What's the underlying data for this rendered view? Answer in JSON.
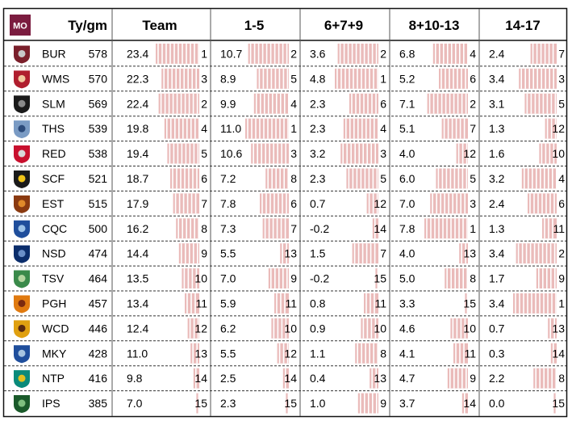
{
  "chart_data": {
    "type": "table",
    "badge": "MO",
    "columns": {
      "tygm": "Ty/gm",
      "team": "Team",
      "g1": "1-5",
      "g2": "6+7+9",
      "g3": "8+10-13",
      "g4": "14-17"
    },
    "rows": [
      {
        "code": "BUR",
        "tygm": "578",
        "team": {
          "v": "23.4",
          "r": "1"
        },
        "g1": {
          "v": "10.7",
          "r": "2"
        },
        "g2": {
          "v": "3.6",
          "r": "2"
        },
        "g3": {
          "v": "6.8",
          "r": "4"
        },
        "g4": {
          "v": "2.4",
          "r": "7"
        }
      },
      {
        "code": "WMS",
        "tygm": "570",
        "team": {
          "v": "22.3",
          "r": "3"
        },
        "g1": {
          "v": "8.9",
          "r": "5"
        },
        "g2": {
          "v": "4.8",
          "r": "1"
        },
        "g3": {
          "v": "5.2",
          "r": "6"
        },
        "g4": {
          "v": "3.4",
          "r": "3"
        }
      },
      {
        "code": "SLM",
        "tygm": "569",
        "team": {
          "v": "22.4",
          "r": "2"
        },
        "g1": {
          "v": "9.9",
          "r": "4"
        },
        "g2": {
          "v": "2.3",
          "r": "6"
        },
        "g3": {
          "v": "7.1",
          "r": "2"
        },
        "g4": {
          "v": "3.1",
          "r": "5"
        }
      },
      {
        "code": "THS",
        "tygm": "539",
        "team": {
          "v": "19.8",
          "r": "4"
        },
        "g1": {
          "v": "11.0",
          "r": "1"
        },
        "g2": {
          "v": "2.3",
          "r": "4"
        },
        "g3": {
          "v": "5.1",
          "r": "7"
        },
        "g4": {
          "v": "1.3",
          "r": "12"
        }
      },
      {
        "code": "RED",
        "tygm": "538",
        "team": {
          "v": "19.4",
          "r": "5"
        },
        "g1": {
          "v": "10.6",
          "r": "3"
        },
        "g2": {
          "v": "3.2",
          "r": "3"
        },
        "g3": {
          "v": "4.0",
          "r": "12"
        },
        "g4": {
          "v": "1.6",
          "r": "10"
        }
      },
      {
        "code": "SCF",
        "tygm": "521",
        "team": {
          "v": "18.7",
          "r": "6"
        },
        "g1": {
          "v": "7.2",
          "r": "8"
        },
        "g2": {
          "v": "2.3",
          "r": "5"
        },
        "g3": {
          "v": "6.0",
          "r": "5"
        },
        "g4": {
          "v": "3.2",
          "r": "4"
        }
      },
      {
        "code": "EST",
        "tygm": "515",
        "team": {
          "v": "17.9",
          "r": "7"
        },
        "g1": {
          "v": "7.8",
          "r": "6"
        },
        "g2": {
          "v": "0.7",
          "r": "12"
        },
        "g3": {
          "v": "7.0",
          "r": "3"
        },
        "g4": {
          "v": "2.4",
          "r": "6"
        }
      },
      {
        "code": "CQC",
        "tygm": "500",
        "team": {
          "v": "16.2",
          "r": "8"
        },
        "g1": {
          "v": "7.3",
          "r": "7"
        },
        "g2": {
          "v": "-0.2",
          "r": "14"
        },
        "g3": {
          "v": "7.8",
          "r": "1"
        },
        "g4": {
          "v": "1.3",
          "r": "11"
        }
      },
      {
        "code": "NSD",
        "tygm": "474",
        "team": {
          "v": "14.4",
          "r": "9"
        },
        "g1": {
          "v": "5.5",
          "r": "13"
        },
        "g2": {
          "v": "1.5",
          "r": "7"
        },
        "g3": {
          "v": "4.0",
          "r": "13"
        },
        "g4": {
          "v": "3.4",
          "r": "2"
        }
      },
      {
        "code": "TSV",
        "tygm": "464",
        "team": {
          "v": "13.5",
          "r": "10"
        },
        "g1": {
          "v": "7.0",
          "r": "9"
        },
        "g2": {
          "v": "-0.2",
          "r": "15"
        },
        "g3": {
          "v": "5.0",
          "r": "8"
        },
        "g4": {
          "v": "1.7",
          "r": "9"
        }
      },
      {
        "code": "PGH",
        "tygm": "457",
        "team": {
          "v": "13.4",
          "r": "11"
        },
        "g1": {
          "v": "5.9",
          "r": "11"
        },
        "g2": {
          "v": "0.8",
          "r": "11"
        },
        "g3": {
          "v": "3.3",
          "r": "15"
        },
        "g4": {
          "v": "3.4",
          "r": "1"
        }
      },
      {
        "code": "WCD",
        "tygm": "446",
        "team": {
          "v": "12.4",
          "r": "12"
        },
        "g1": {
          "v": "6.2",
          "r": "10"
        },
        "g2": {
          "v": "0.9",
          "r": "10"
        },
        "g3": {
          "v": "4.6",
          "r": "10"
        },
        "g4": {
          "v": "0.7",
          "r": "13"
        }
      },
      {
        "code": "MKY",
        "tygm": "428",
        "team": {
          "v": "11.0",
          "r": "13"
        },
        "g1": {
          "v": "5.5",
          "r": "12"
        },
        "g2": {
          "v": "1.1",
          "r": "8"
        },
        "g3": {
          "v": "4.1",
          "r": "11"
        },
        "g4": {
          "v": "0.3",
          "r": "14"
        }
      },
      {
        "code": "NTP",
        "tygm": "416",
        "team": {
          "v": "9.8",
          "r": "14"
        },
        "g1": {
          "v": "2.5",
          "r": "14"
        },
        "g2": {
          "v": "0.4",
          "r": "13"
        },
        "g3": {
          "v": "4.7",
          "r": "9"
        },
        "g4": {
          "v": "2.2",
          "r": "8"
        }
      },
      {
        "code": "IPS",
        "tygm": "385",
        "team": {
          "v": "7.0",
          "r": "15"
        },
        "g1": {
          "v": "2.3",
          "r": "15"
        },
        "g2": {
          "v": "1.0",
          "r": "9"
        },
        "g3": {
          "v": "3.7",
          "r": "14"
        },
        "g4": {
          "v": "0.0",
          "r": "15"
        }
      }
    ],
    "logos": {
      "BUR": [
        "#7a1f2b",
        "#c8c8c8"
      ],
      "WMS": [
        "#b01e2e",
        "#f2c9a0"
      ],
      "SLM": [
        "#1a1a1a",
        "#8a8a8a"
      ],
      "THS": [
        "#7a9bc4",
        "#2b4a7a"
      ],
      "RED": [
        "#c8102e",
        "#d9d9d9"
      ],
      "SCF": [
        "#1a1a1a",
        "#f0c419"
      ],
      "EST": [
        "#8a3a10",
        "#e08a2a"
      ],
      "CQC": [
        "#1f4e9c",
        "#9cc2e8"
      ],
      "NSD": [
        "#0b2d6b",
        "#6a8fc8"
      ],
      "TSV": [
        "#3a8a4a",
        "#b5d6a0"
      ],
      "PGH": [
        "#e07a10",
        "#7a2a10"
      ],
      "WCD": [
        "#e0a010",
        "#5a2a10"
      ],
      "MKY": [
        "#1f4e9c",
        "#a7c4e0"
      ],
      "NTP": [
        "#0a8a7a",
        "#e0c020"
      ],
      "IPS": [
        "#1a5a2a",
        "#7fbf7f"
      ]
    },
    "colors": {
      "badge_bg": "#7b1c3f",
      "bar": "#e8b4b3",
      "border": "#111111",
      "divider": "#555555"
    }
  }
}
